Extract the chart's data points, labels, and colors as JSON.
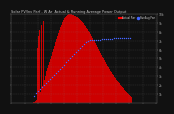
{
  "title": "Solar PV/Inv Perf - W Ar  Actual & Running Average Power Output",
  "bg_color": "#111111",
  "plot_bg_color": "#111111",
  "grid_color": "#888888",
  "bar_color": "#cc0000",
  "bar_edge_color": "#cc0000",
  "dot_color": "#0000ff",
  "dot_color2": "#4466ff",
  "legend_actual_color": "#ff0000",
  "legend_avg_color": "#0000ff",
  "n_bars": 144,
  "ylim": [
    0,
    1.0
  ],
  "xlim": [
    0,
    144
  ]
}
